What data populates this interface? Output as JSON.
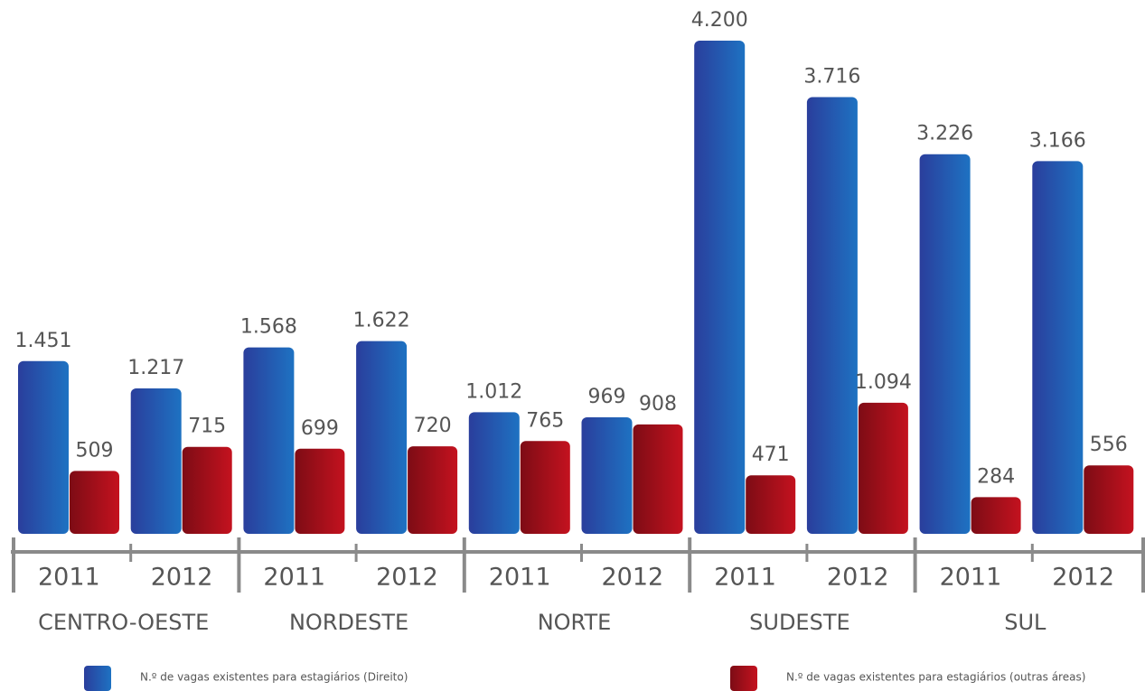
{
  "chart_data": {
    "type": "bar",
    "categories": [
      "2011",
      "2012",
      "2011",
      "2012",
      "2011",
      "2012",
      "2011",
      "2012",
      "2011",
      "2012"
    ],
    "groups": [
      "CENTRO-OESTE",
      "NORDESTE",
      "NORTE",
      "SUDESTE",
      "SUL"
    ],
    "series": [
      {
        "name": "N.º de vagas existentes para estagiários (Direito)",
        "color": "#1f5fb5",
        "values": [
          1451,
          1217,
          1568,
          1622,
          1012,
          969,
          4200,
          3716,
          3226,
          3166
        ],
        "value_labels": [
          "1.451",
          "1.217",
          "1.568",
          "1.622",
          "1.012",
          "969",
          "4.200",
          "3.716",
          "3.226",
          "3.166"
        ]
      },
      {
        "name": "N.º de vagas existentes para estagiários (outras áreas)",
        "color": "#a80f1a",
        "values": [
          509,
          715,
          699,
          720,
          765,
          908,
          471,
          1094,
          284,
          556
        ],
        "value_labels": [
          "509",
          "715",
          "699",
          "720",
          "765",
          "908",
          "471",
          "1.094",
          "284",
          "556"
        ]
      }
    ]
  }
}
